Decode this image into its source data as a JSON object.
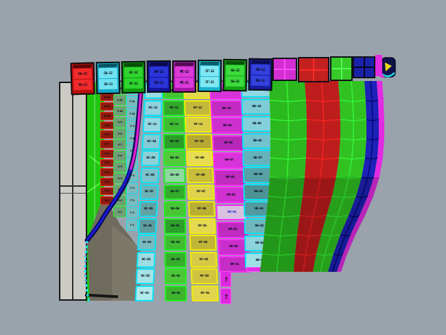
{
  "scene": {
    "description": "3D CAD viewport showing a paneled curved surface with labeled colored panels",
    "background": "#9aa2ac",
    "label_note": "panel labels are tiny illegible alphanumeric codes",
    "shadow": {
      "dark": "#6f6b5d",
      "light": "#7c7969"
    },
    "reference_panel": {
      "fill": "#cbcac5",
      "border": "#151515"
    },
    "green_strip": {
      "fill": "#20c611",
      "line": "#52f03a"
    }
  },
  "header_blocks": [
    {
      "name": "stack-1",
      "body": "#b90f0f",
      "cell": "#ef2a2a",
      "labels": [
        "RA-12",
        "RA-11"
      ]
    },
    {
      "name": "stack-2",
      "body": "#12a8c6",
      "cell": "#6fe2f2",
      "labels": [
        "CB-12",
        "CB-11"
      ]
    },
    {
      "name": "stack-3",
      "body": "#0f9a0f",
      "cell": "#2ed52e",
      "labels": [
        "GC-12",
        "GC-11"
      ]
    },
    {
      "name": "stack-4",
      "body": "#14149a",
      "cell": "#2a35d8",
      "labels": [
        "BD-12",
        "BD-11"
      ]
    },
    {
      "name": "stack-5",
      "body": "#a518a5",
      "cell": "#da3ada",
      "labels": [
        "ME-12",
        "ME-11"
      ]
    },
    {
      "name": "stack-6",
      "body": "#17b4cc",
      "cell": "#7fe6f2",
      "labels": [
        "CF-12",
        "CF-11"
      ]
    },
    {
      "name": "stack-7",
      "body": "#13a513",
      "cell": "#3bdb3b",
      "labels": [
        "GG-12",
        "GG-11"
      ]
    },
    {
      "name": "stack-8",
      "body": "#161da0",
      "cell": "#3340dd",
      "labels": [
        "BH-12",
        "BH-11"
      ]
    }
  ],
  "top_grids": [
    {
      "name": "top-grid-magenta",
      "fill": "#d22ed2",
      "line": "#ff49ff"
    },
    {
      "name": "top-grid-red",
      "fill": "#c32020",
      "line": "#ff2a2a"
    },
    {
      "name": "top-grid-green",
      "fill": "#38c92a",
      "line": "#4dff4d"
    },
    {
      "name": "top-grid-blue",
      "fill": "#1b22aa",
      "line": "#05051e"
    },
    {
      "name": "top-bar-magenta",
      "fill": "#e02ee0"
    }
  ],
  "end_cap": {
    "body": "#10124a",
    "mark": "#e8d81f",
    "swoosh": "#1ae0ea",
    "dot": "#e22ed2"
  },
  "left_columns": [
    {
      "name": "red-strip",
      "prefix": "R",
      "rows": 13,
      "fill": "#8e1b10",
      "bar": "#f22314"
    },
    {
      "name": "sage-column",
      "prefix": "S",
      "rows": 12,
      "fill": "#6fa077",
      "border": "#2ae32c"
    },
    {
      "name": "teal-column",
      "prefix": "T",
      "rows": 12,
      "fill": "#7cb9bd",
      "border": "#12e6f2"
    }
  ],
  "mid_columns": [
    {
      "name": "cyan-column-1",
      "prefix": "NC",
      "rows": 13,
      "border": "#08e4f8",
      "fills": [
        "#9cdce5",
        "#8ed3dd",
        "#94d8e1",
        "#85cbd5",
        "#8ed1d9",
        "#7cc2cc",
        "#6db2b6",
        "#61a2a4",
        "#5d9d9e",
        "#77bbc0",
        "#9ddce1",
        "#a6e3e7",
        "#b1eaed"
      ]
    },
    {
      "name": "green-column",
      "prefix": "NG",
      "rows": 13,
      "border": "#23ef23",
      "fills": [
        "#46c433",
        "#33a82a",
        "#3fbc2f",
        "#2c9e27",
        "#52ca3c",
        "#8fd8a0",
        "#33ab2b",
        "#49c535",
        "#2da02a",
        "#41bb31",
        "#36ae2c",
        "#4cc636",
        "#3db32e"
      ]
    },
    {
      "name": "yellow-column",
      "prefix": "NY",
      "rows": 13,
      "border": "#f2ec09",
      "fills": [
        "#e3d84e",
        "#c4b83a",
        "#d9cd47",
        "#b5a933",
        "#e8dd52",
        "#c9bd3c",
        "#ded34a",
        "#baae35",
        "#e5da50",
        "#c2b638",
        "#d6ca45",
        "#cfc340",
        "#e0d54c"
      ]
    },
    {
      "name": "magenta-column",
      "prefix": "NM",
      "rows": 11,
      "border": "#fb2cfb",
      "special_row": 7,
      "special_label_color": "#2233cc",
      "fills": [
        "#d633d6",
        "#c22cc2",
        "#cd30cd",
        "#b828b8",
        "#d934d9",
        "#c02bc0",
        "#d131d1",
        "#d8c0e0",
        "#bf2abf",
        "#cb2fcb",
        "#c52dc5"
      ]
    },
    {
      "name": "cyan-column-2",
      "prefix": "NB",
      "rows": 11,
      "border": "#08e4f8",
      "fills": [
        "#8fd8e2",
        "#7fccd7",
        "#85d1db",
        "#73c3ce",
        "#66b2ba",
        "#58a1a6",
        "#4d9396",
        "#529ba0",
        "#6db7bd",
        "#8cd3dc",
        "#9de0e6"
      ]
    }
  ],
  "magenta_footer": {
    "prefix": "VM",
    "cells": 2,
    "fill": "#de2ade",
    "border": "#ff4bff"
  },
  "magenta_sliver": {
    "fill": "#e22ce2"
  },
  "right_strips": [
    {
      "name": "grid-column-green-a",
      "fill": "#2bb91f",
      "line": "#35f035"
    },
    {
      "name": "grid-column-red",
      "fill": "#bd1d1d",
      "line": "#f52222"
    },
    {
      "name": "grid-column-green-b",
      "fill": "#31c222",
      "line": "#35f035"
    },
    {
      "name": "grid-column-blue",
      "fill": "#1c22b8",
      "line": "#090974"
    },
    {
      "name": "grid-edge-magenta",
      "fill": "#e22ce2",
      "line": "#e22ce2"
    }
  ],
  "strut": {
    "navy": "#0c0c55",
    "magenta": "#df1ed2",
    "blue": "#1a1ae0",
    "cyan_dash": "#18e8f2",
    "pink_dash": "#e22ed2"
  }
}
